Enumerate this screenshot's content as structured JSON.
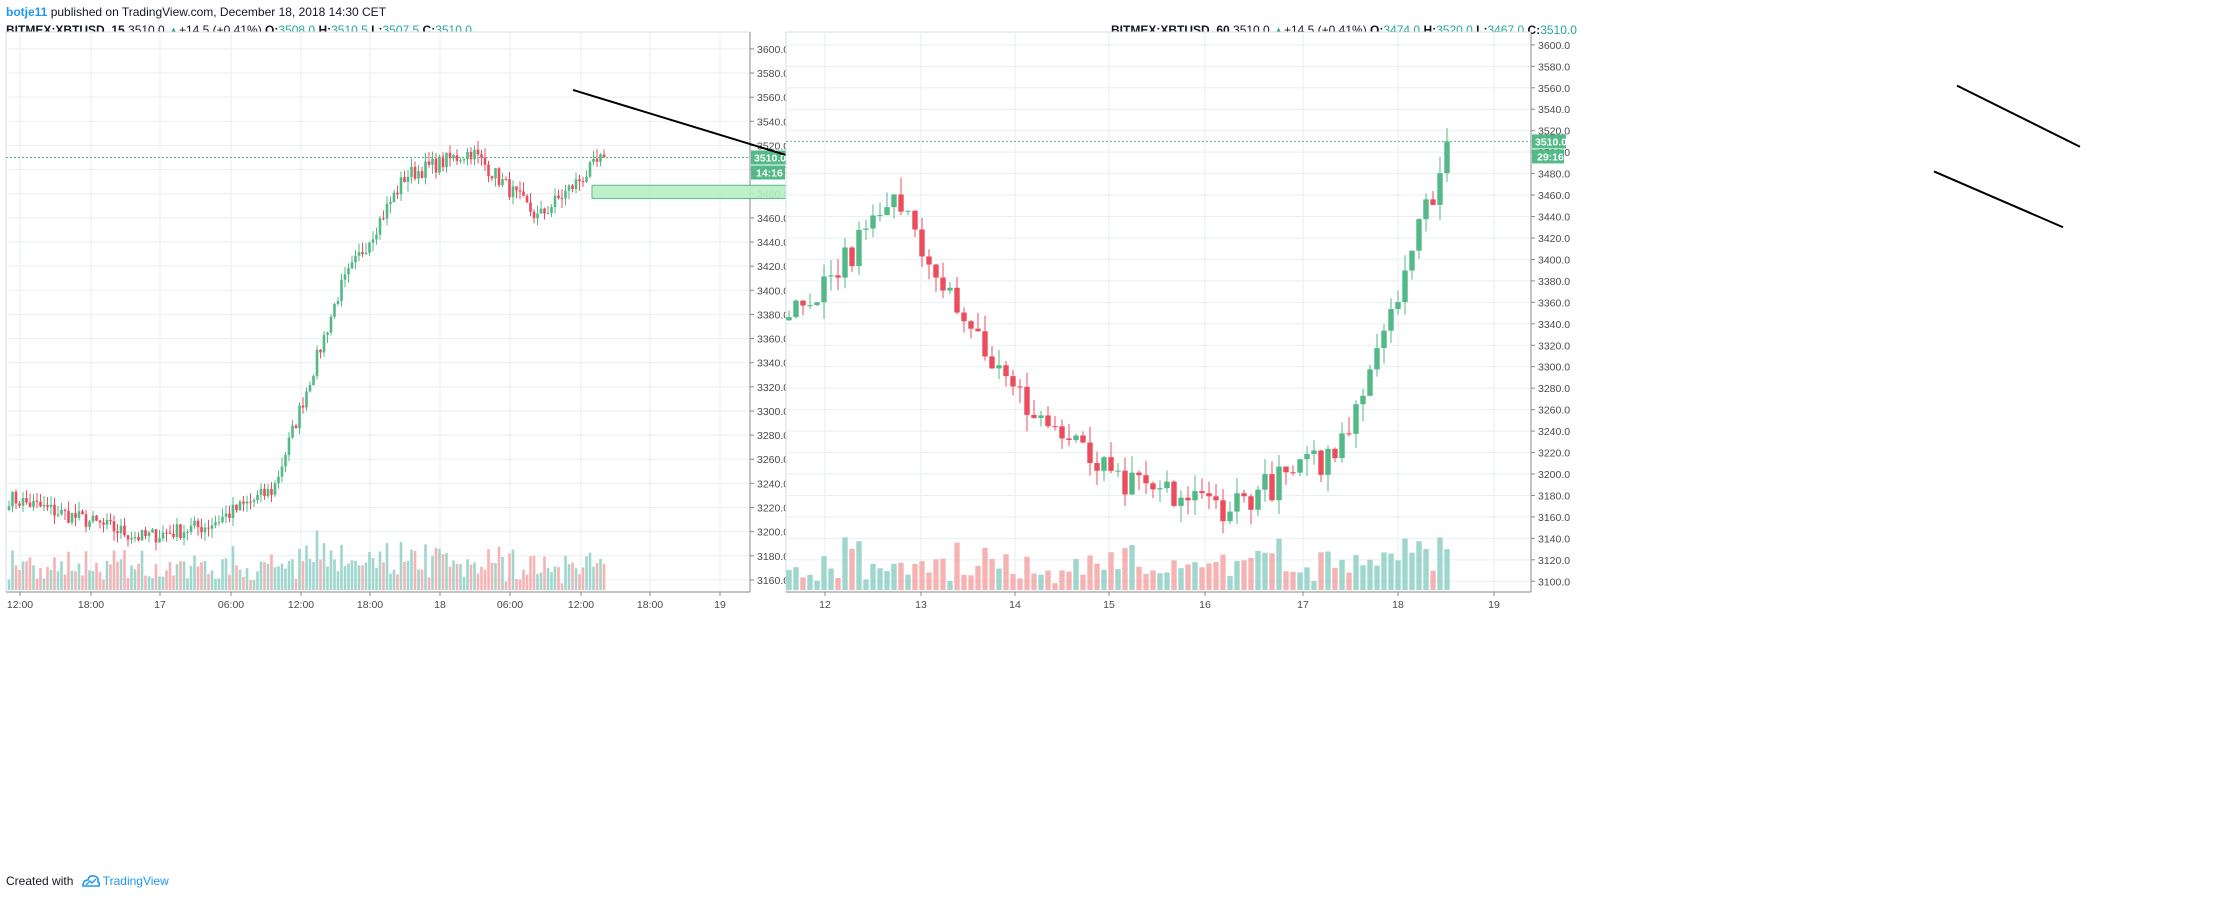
{
  "header": {
    "author": "botje11",
    "text": "published on TradingView.com, December 18, 2018 14:30 CET"
  },
  "footer": {
    "created_with": "Created with",
    "brand": "TradingView"
  },
  "colors": {
    "up": "#53b987",
    "down": "#eb4d5c",
    "vol_up": "#8ecfc6",
    "vol_down": "#f5a6a6",
    "grid": "#e9eff3",
    "price_tag": "#53b987",
    "zone_fill": "#b7f0c5",
    "zone_stroke": "#4caf85",
    "trendline": "#000000"
  },
  "left_legend": {
    "symbol": "BITMEX:XBTUSD, 15",
    "last": "3510.0",
    "change": "+14.5 (+0.41%)",
    "open_label": "O:",
    "open": "3508.0",
    "high_label": "H:",
    "high": "3510.5",
    "low_label": "L:",
    "low": "3507.5",
    "close_label": "C:",
    "close": "3510.0"
  },
  "right_legend": {
    "symbol": "BITMEX:XBTUSD, 60",
    "last": "3510.0",
    "change": "+14.5 (+0.41%)",
    "open_label": "O:",
    "open": "3474.0",
    "high_label": "H:",
    "high": "3520.0",
    "low_label": "L:",
    "low": "3467.0",
    "close_label": "C:",
    "close": "3510.0"
  },
  "chart_data": [
    {
      "type": "candlestick",
      "symbol": "BITMEX:XBTUSD",
      "interval": "15",
      "y_ticks": [
        3160,
        3180,
        3200,
        3220,
        3240,
        3260,
        3280,
        3300,
        3320,
        3340,
        3360,
        3380,
        3400,
        3420,
        3440,
        3460,
        3480,
        3500,
        3520,
        3540,
        3560,
        3580,
        3600
      ],
      "x_ticks": [
        "12:00",
        "18:00",
        "17",
        "06:00",
        "12:00",
        "18:00",
        "18",
        "06:00",
        "12:00",
        "18:00",
        "19"
      ],
      "last_price": "3510.0",
      "countdown": "14:16",
      "grid": true,
      "series": [
        {
          "name": "",
          "points": [
            {
              "x": "12:00",
              "value": 3228
            },
            {
              "x": "18:00",
              "value": 3212
            },
            {
              "x": "17",
              "value": 3195
            },
            {
              "x": "06:00",
              "value": 3205
            },
            {
              "x": "12:00",
              "value": 3235
            },
            {
              "x": "18:00",
              "value": 3400
            },
            {
              "x": "18",
              "value": 3495
            },
            {
              "x": "06:00",
              "value": 3515
            },
            {
              "x": "12:00",
              "value": 3460
            },
            {
              "x": "18:00",
              "value": 3510
            }
          ]
        }
      ],
      "annotations": {
        "trendline": {
          "from": {
            "x": "18:00",
            "y": 3566
          },
          "to": {
            "x": "12:00",
            "y": 3487
          }
        },
        "support_zone": {
          "low": 3476,
          "high": 3487,
          "from": "18",
          "to": "18:00"
        }
      }
    },
    {
      "type": "candlestick",
      "symbol": "BITMEX:XBTUSD",
      "interval": "60",
      "y_ticks": [
        3100,
        3120,
        3140,
        3160,
        3180,
        3200,
        3220,
        3240,
        3260,
        3280,
        3300,
        3320,
        3340,
        3360,
        3380,
        3400,
        3420,
        3440,
        3460,
        3480,
        3500,
        3520,
        3540,
        3560,
        3580,
        3600
      ],
      "x_ticks": [
        "12",
        "13",
        "14",
        "15",
        "16",
        "17",
        "18",
        "19"
      ],
      "last_price": "3510.0",
      "countdown": "29:16",
      "grid": true,
      "series": [
        {
          "name": "",
          "points": [
            {
              "x": "12",
              "value": 3345
            },
            {
              "x": "13",
              "value": 3455
            },
            {
              "x": "14",
              "value": 3280
            },
            {
              "x": "15",
              "value": 3190
            },
            {
              "x": "16",
              "value": 3170
            },
            {
              "x": "17",
              "value": 3220
            },
            {
              "x": "18",
              "value": 3500
            }
          ]
        }
      ],
      "annotations": {
        "upper_channel_line": {
          "from": {
            "x": "17.8",
            "y": 3562
          },
          "to": {
            "x": "18.8",
            "y": 3505
          }
        },
        "lower_channel_line": {
          "from": {
            "x": "17.65",
            "y": 3482
          },
          "to": {
            "x": "18.5",
            "y": 3430
          }
        }
      }
    }
  ]
}
